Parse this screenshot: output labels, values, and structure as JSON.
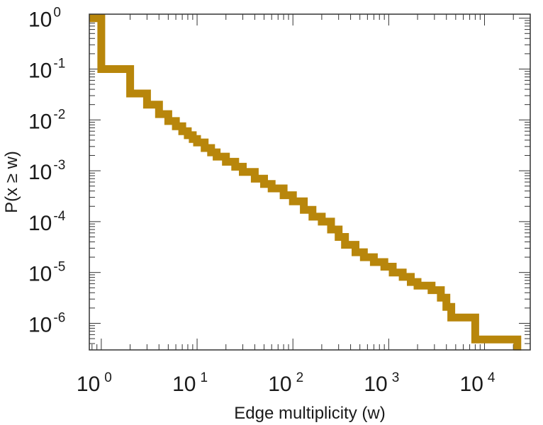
{
  "chart_data": {
    "type": "line",
    "title": "",
    "xlabel": "Edge multiplicity (w)",
    "ylabel": "P(x ≥ w)",
    "xscale": "log",
    "yscale": "log",
    "xlim": [
      0.75,
      30000
    ],
    "ylim": [
      3e-07,
      1.2
    ],
    "grid": false,
    "legend": "none",
    "color": "#B8860B",
    "x_ticks": [
      {
        "base": "10",
        "exp": "0",
        "value": 1
      },
      {
        "base": "10",
        "exp": "1",
        "value": 10
      },
      {
        "base": "10",
        "exp": "2",
        "value": 100
      },
      {
        "base": "10",
        "exp": "3",
        "value": 1000
      },
      {
        "base": "10",
        "exp": "4",
        "value": 10000
      }
    ],
    "y_ticks": [
      {
        "base": "10",
        "exp": "0",
        "value": 1
      },
      {
        "base": "10",
        "exp": "-1",
        "value": 0.1
      },
      {
        "base": "10",
        "exp": "-2",
        "value": 0.01
      },
      {
        "base": "10",
        "exp": "-3",
        "value": 0.001
      },
      {
        "base": "10",
        "exp": "-4",
        "value": 0.0001
      },
      {
        "base": "10",
        "exp": "-5",
        "value": 1e-05
      },
      {
        "base": "10",
        "exp": "-6",
        "value": 1e-06
      }
    ],
    "series": [
      {
        "points": [
          [
            0.75,
            1.0
          ],
          [
            1,
            1.0
          ],
          [
            1,
            0.1
          ],
          [
            2,
            0.1
          ],
          [
            2,
            0.033
          ],
          [
            3,
            0.033
          ],
          [
            3,
            0.02
          ],
          [
            4,
            0.02
          ],
          [
            4,
            0.013
          ],
          [
            5,
            0.013
          ],
          [
            5,
            0.0095
          ],
          [
            6,
            0.0095
          ],
          [
            6,
            0.0075
          ],
          [
            7,
            0.0075
          ],
          [
            7,
            0.006
          ],
          [
            8,
            0.006
          ],
          [
            8,
            0.005
          ],
          [
            9,
            0.005
          ],
          [
            9,
            0.0042
          ],
          [
            10,
            0.0042
          ],
          [
            10,
            0.0036
          ],
          [
            12,
            0.0036
          ],
          [
            12,
            0.0028
          ],
          [
            14,
            0.0028
          ],
          [
            14,
            0.0023
          ],
          [
            16,
            0.0023
          ],
          [
            16,
            0.0019
          ],
          [
            20,
            0.0019
          ],
          [
            20,
            0.0015
          ],
          [
            25,
            0.0015
          ],
          [
            25,
            0.0012
          ],
          [
            30,
            0.0012
          ],
          [
            30,
            0.00095
          ],
          [
            40,
            0.00095
          ],
          [
            40,
            0.0007
          ],
          [
            50,
            0.0007
          ],
          [
            50,
            0.00055
          ],
          [
            60,
            0.00055
          ],
          [
            60,
            0.00045
          ],
          [
            80,
            0.00045
          ],
          [
            80,
            0.00033
          ],
          [
            100,
            0.00033
          ],
          [
            100,
            0.00025
          ],
          [
            130,
            0.00025
          ],
          [
            130,
            0.00017
          ],
          [
            160,
            0.00017
          ],
          [
            160,
            0.000125
          ],
          [
            200,
            0.000125
          ],
          [
            200,
            0.0001
          ],
          [
            250,
            0.0001
          ],
          [
            250,
            7e-05
          ],
          [
            300,
            7e-05
          ],
          [
            300,
            5e-05
          ],
          [
            350,
            5e-05
          ],
          [
            350,
            3.5e-05
          ],
          [
            450,
            3.5e-05
          ],
          [
            450,
            2.5e-05
          ],
          [
            550,
            2.5e-05
          ],
          [
            550,
            2e-05
          ],
          [
            700,
            2e-05
          ],
          [
            700,
            1.6e-05
          ],
          [
            900,
            1.6e-05
          ],
          [
            900,
            1.3e-05
          ],
          [
            1100,
            1.3e-05
          ],
          [
            1100,
            1e-05
          ],
          [
            1400,
            1e-05
          ],
          [
            1400,
            8.2e-06
          ],
          [
            1700,
            8.2e-06
          ],
          [
            1700,
            6.5e-06
          ],
          [
            2000,
            6.5e-06
          ],
          [
            2000,
            5.5e-06
          ],
          [
            2800,
            5.5e-06
          ],
          [
            2800,
            4.5e-06
          ],
          [
            3500,
            4.5e-06
          ],
          [
            3500,
            3.2e-06
          ],
          [
            4000,
            3.2e-06
          ],
          [
            4000,
            2.1e-06
          ],
          [
            4500,
            2.1e-06
          ],
          [
            4500,
            1.3e-06
          ],
          [
            8000,
            1.3e-06
          ],
          [
            8000,
            4.8e-07
          ],
          [
            22000,
            4.8e-07
          ],
          [
            22000,
            3.5e-07
          ]
        ]
      }
    ]
  }
}
